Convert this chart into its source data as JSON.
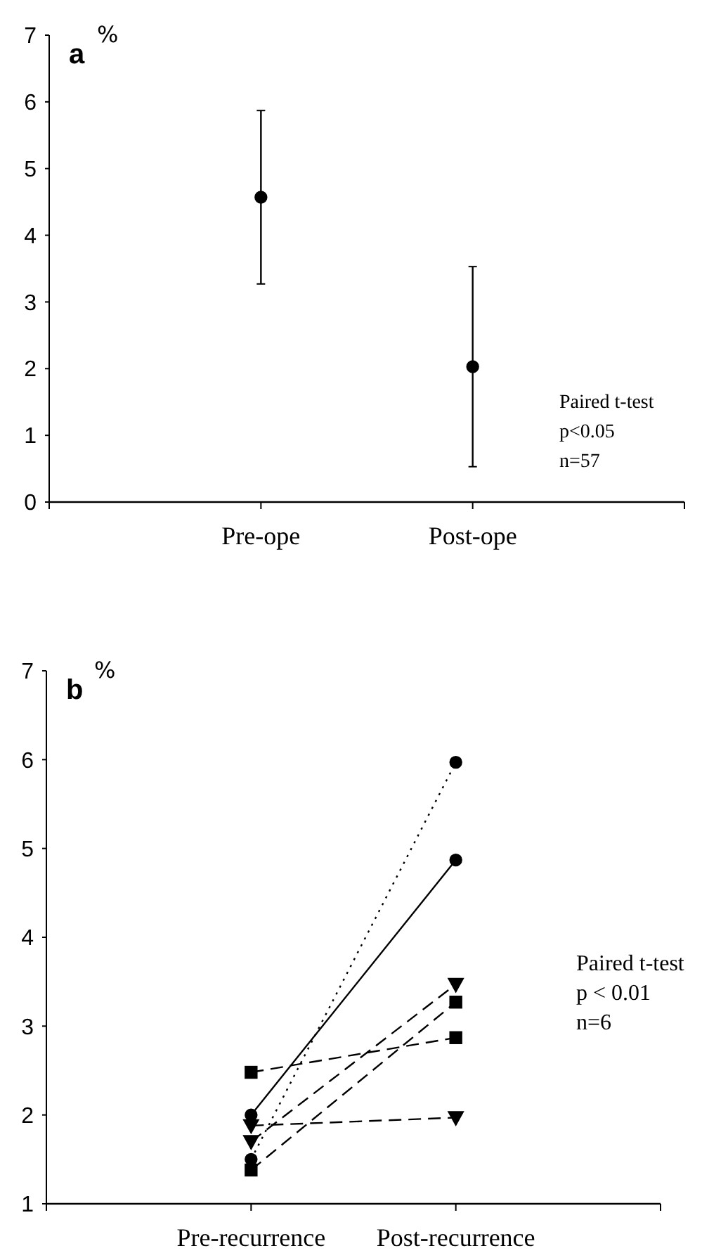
{
  "chart_data": [
    {
      "type": "scatter",
      "title": "a",
      "ylabel": "%",
      "categories": [
        "Pre-ope",
        "Post-ope"
      ],
      "values": [
        4.57,
        2.03
      ],
      "errors": [
        1.3,
        1.5
      ],
      "color": "#000000",
      "marker": "circle",
      "ylim": [
        0,
        7
      ],
      "yticks": [
        0,
        1,
        2,
        3,
        4,
        5,
        6,
        7
      ],
      "annotations": [
        "Paired t-test",
        "p<0.05",
        "n=57"
      ]
    },
    {
      "type": "line",
      "title": "b",
      "ylabel": "%",
      "categories": [
        "Pre-recurrence",
        "Post-recurrence"
      ],
      "ylim": [
        1,
        7
      ],
      "yticks": [
        1,
        2,
        3,
        4,
        5,
        6,
        7
      ],
      "annotations": [
        "Paired t-test",
        "p < 0.01",
        "n=6"
      ],
      "series": [
        {
          "color": "#000000",
          "values": [
            1.5,
            5.97
          ],
          "marker": "circle",
          "line_style": "dotted"
        },
        {
          "color": "#000000",
          "values": [
            2.0,
            4.87
          ],
          "marker": "circle",
          "line_style": "solid"
        },
        {
          "color": "#000000",
          "values": [
            1.7,
            3.47
          ],
          "marker": "triangle",
          "line_style": "dashed"
        },
        {
          "color": "#000000",
          "values": [
            1.38,
            3.27
          ],
          "marker": "square",
          "line_style": "dashed"
        },
        {
          "color": "#000000",
          "values": [
            2.48,
            2.87
          ],
          "marker": "square",
          "line_style": "dashed"
        },
        {
          "color": "#000000",
          "values": [
            1.88,
            1.97
          ],
          "marker": "triangle",
          "line_style": "dashed"
        }
      ]
    }
  ]
}
